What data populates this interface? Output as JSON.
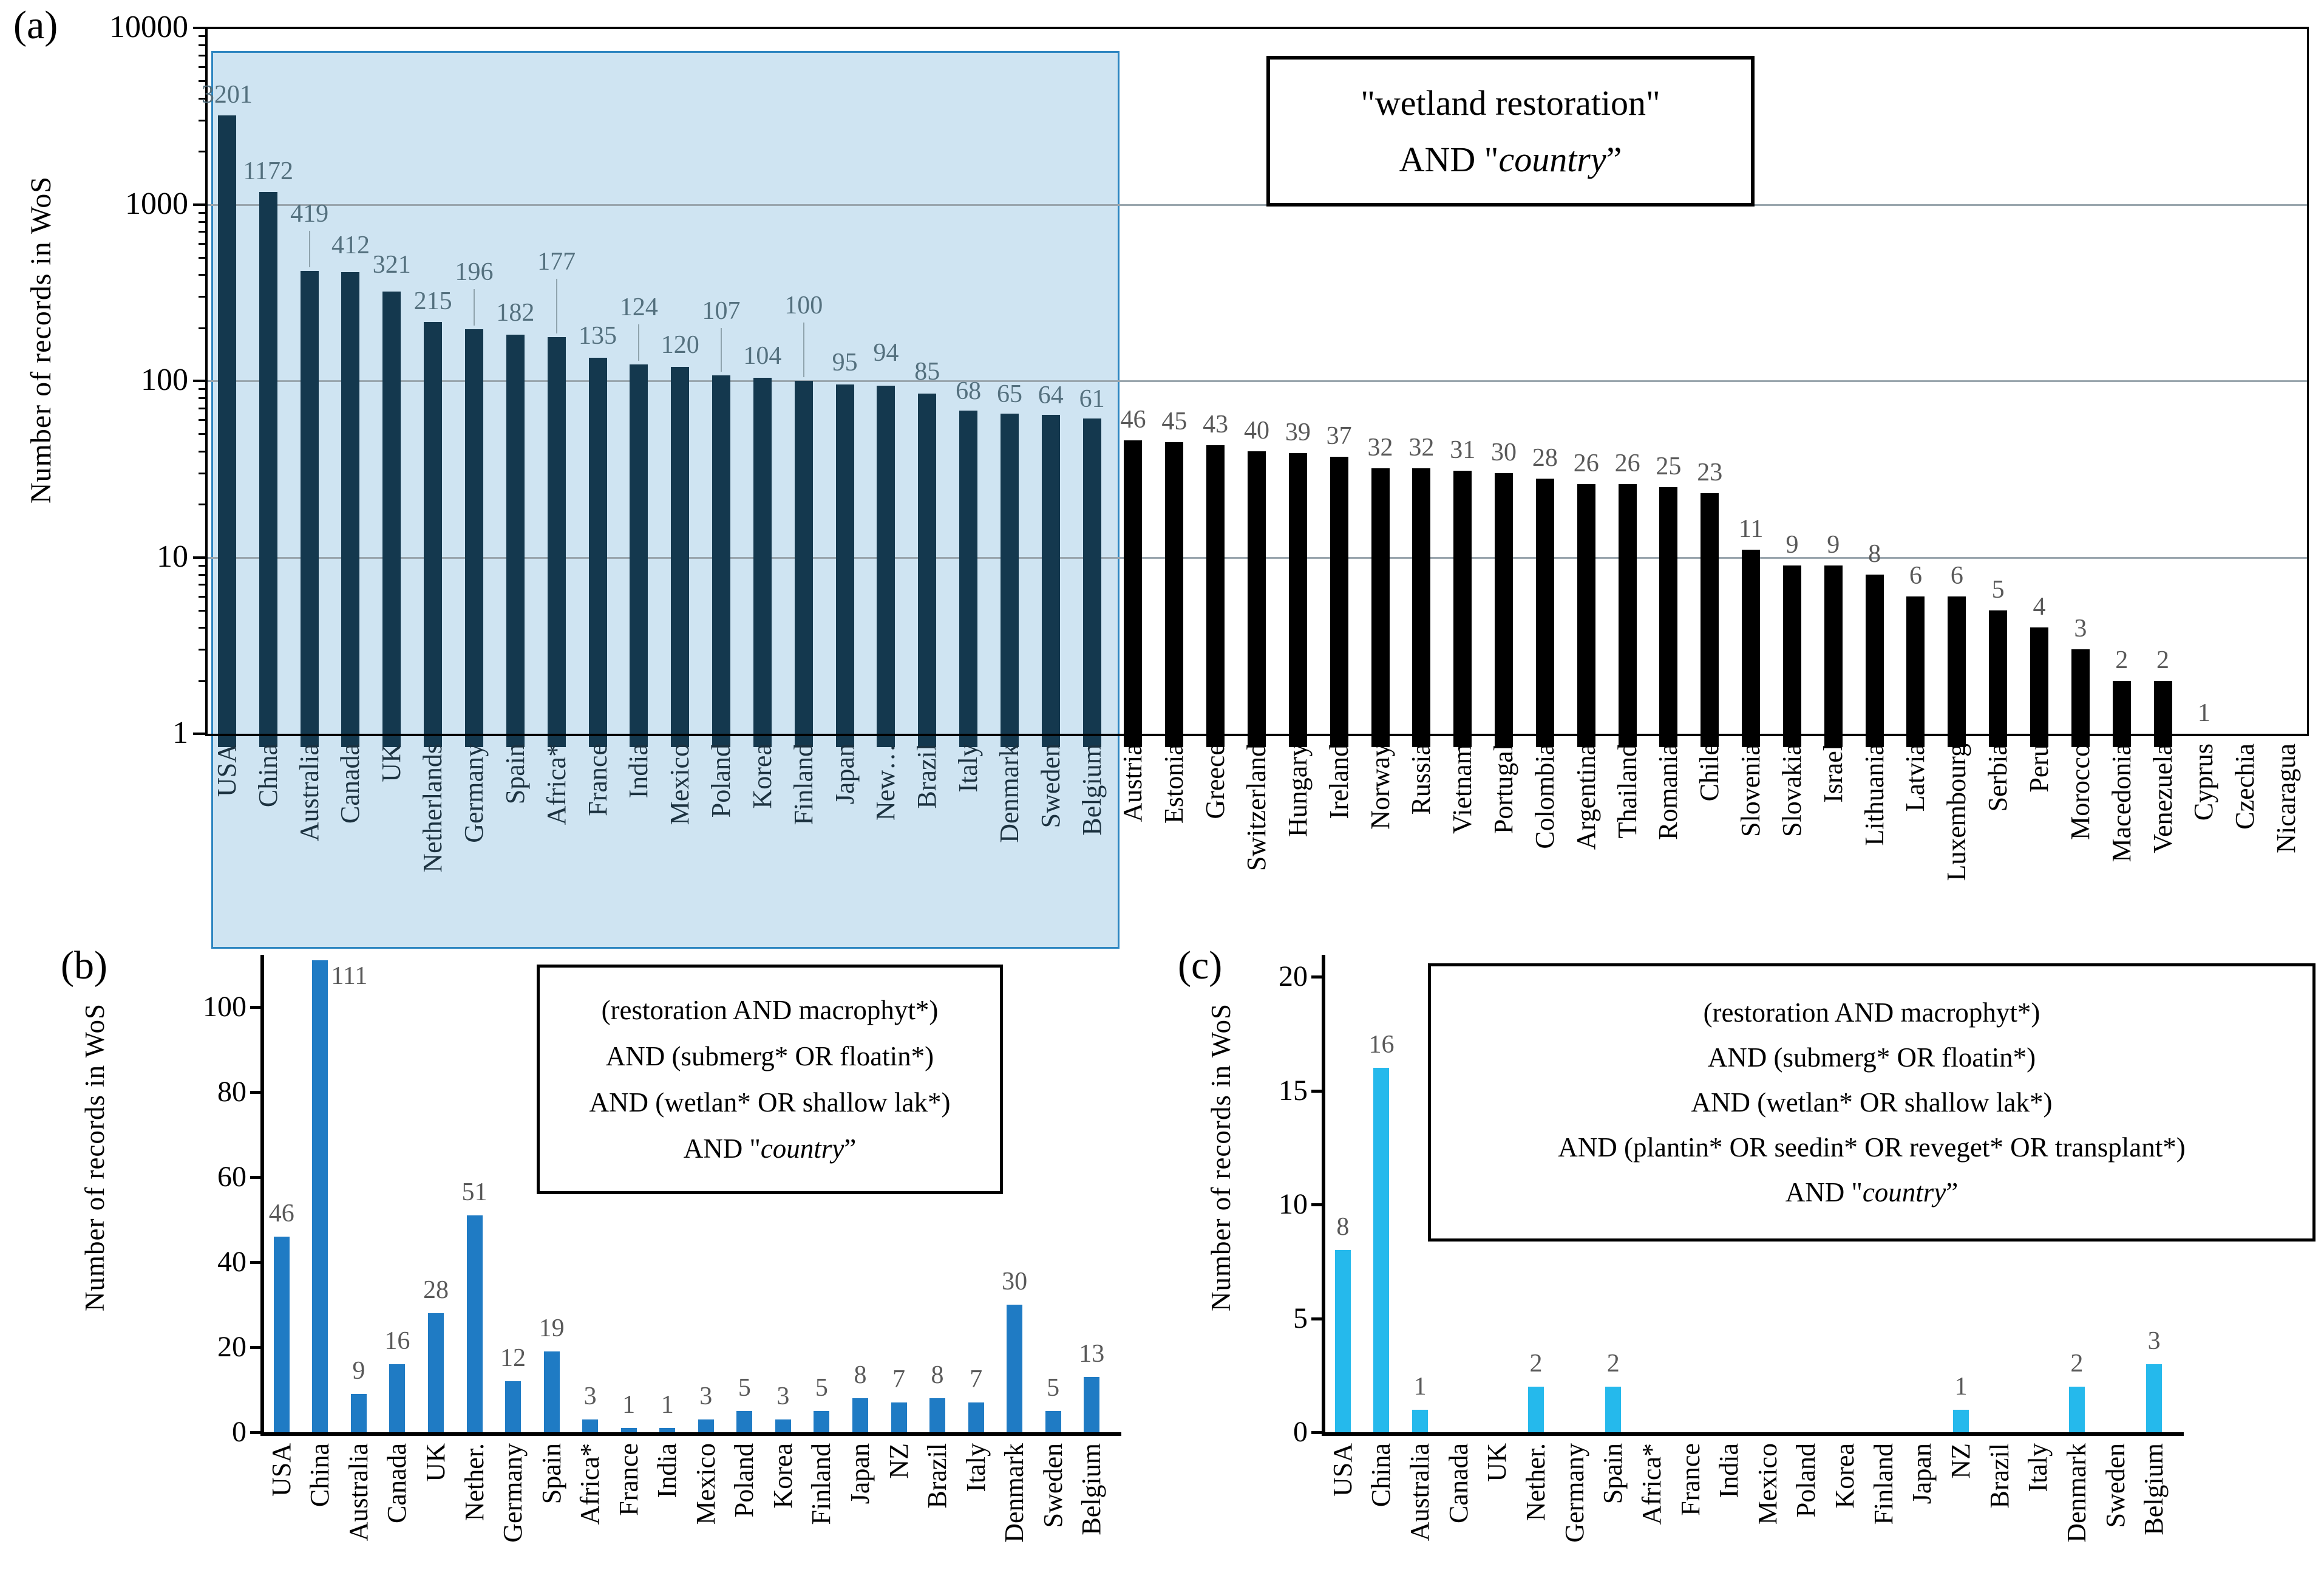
{
  "figure": {
    "panel_a_label": "(a)",
    "panel_b_label": "(b)",
    "panel_c_label": "(c)"
  },
  "colors": {
    "bar_a_highlight": "#14384e",
    "bar_a": "#000000",
    "bar_b": "#1f7bc4",
    "bar_c": "#25b9ec",
    "highlight_fill": "#cfe4f2",
    "highlight_border": "#2e86c1",
    "value_label": "#595959",
    "value_label_highlight": "#54707e",
    "grid": "#9aa6ae"
  },
  "chart_data": [
    {
      "id": "a",
      "type": "bar",
      "yscale": "log",
      "ylabel": "Number of records in WoS",
      "ylim": [
        1,
        10000
      ],
      "y_ticks": [
        "1",
        "10",
        "100",
        "1000",
        "10000"
      ],
      "grid": "on",
      "query": "\"wetland restoration\" AND \"country\"",
      "legend_lines": [
        {
          "pre": "\"wetland restoration\"",
          "italic": "",
          "post": ""
        },
        {
          "pre": "AND \"",
          "italic": "country",
          "post": "”"
        }
      ],
      "highlight_range": [
        0,
        21
      ],
      "categories": [
        "USA",
        "China",
        "Australia",
        "Canada",
        "UK",
        "Netherlands",
        "Germany",
        "Spain",
        "Africa*",
        "France",
        "India",
        "Mexico",
        "Poland",
        "Korea",
        "Finland",
        "Japan",
        "New…",
        "Brazil",
        "Italy",
        "Denmark",
        "Sweden",
        "Belgium",
        "Austria",
        "Estonia",
        "Greece",
        "Switzerland",
        "Hungary",
        "Ireland",
        "Norway",
        "Russia",
        "Vietnam",
        "Portugal",
        "Colombia",
        "Argentina",
        "Thailand",
        "Romania",
        "Chile",
        "Slovenia",
        "Slovakia",
        "Israel",
        "Lithuania",
        "Latvia",
        "Luxembourg",
        "Serbia",
        "Peru",
        "Morocco",
        "Macedonia",
        "Venezuela",
        "Cyprus",
        "Czechia",
        "Nicaragua"
      ],
      "values": [
        3201,
        1172,
        419,
        412,
        321,
        215,
        196,
        182,
        177,
        135,
        124,
        120,
        107,
        104,
        100,
        95,
        94,
        85,
        68,
        65,
        64,
        61,
        46,
        45,
        43,
        40,
        39,
        37,
        32,
        32,
        31,
        30,
        28,
        26,
        26,
        25,
        23,
        11,
        9,
        9,
        8,
        6,
        6,
        5,
        4,
        3,
        2,
        2,
        1,
        null,
        null
      ]
    },
    {
      "id": "b",
      "type": "bar",
      "yscale": "linear",
      "ylabel": "Number of records in WoS",
      "ylim": [
        0,
        100
      ],
      "y_ticks": [
        "0",
        "20",
        "40",
        "60",
        "80",
        "100"
      ],
      "grid": "off",
      "bar_color": "#1f7bc4",
      "query": "(restoration AND macrophyt*) AND (submerg* OR floatin*) AND (wetlan* OR shallow lak*) AND \"country\"",
      "legend_lines": [
        {
          "pre": "(restoration AND macrophyt*)",
          "italic": "",
          "post": ""
        },
        {
          "pre": "AND (submerg* OR floatin*)",
          "italic": "",
          "post": ""
        },
        {
          "pre": "AND (wetlan* OR shallow lak*)",
          "italic": "",
          "post": ""
        },
        {
          "pre": "AND \"",
          "italic": "country",
          "post": "”"
        }
      ],
      "categories": [
        "USA",
        "China",
        "Australia",
        "Canada",
        "UK",
        "Nether.",
        "Germany",
        "Spain",
        "Africa*",
        "France",
        "India",
        "Mexico",
        "Poland",
        "Korea",
        "Finland",
        "Japan",
        "NZ",
        "Brazil",
        "Italy",
        "Denmark",
        "Sweden",
        "Belgium"
      ],
      "values": [
        46,
        111,
        9,
        16,
        28,
        51,
        12,
        19,
        3,
        1,
        1,
        3,
        5,
        3,
        5,
        8,
        7,
        8,
        7,
        30,
        5,
        13
      ]
    },
    {
      "id": "c",
      "type": "bar",
      "yscale": "linear",
      "ylabel": "Number of records in WoS",
      "ylim": [
        0,
        20
      ],
      "y_ticks": [
        "0",
        "5",
        "10",
        "15",
        "20"
      ],
      "grid": "off",
      "bar_color": "#25b9ec",
      "query": "(restoration AND macrophyt*) AND (submerg* OR floatin*) AND (wetlan* OR shallow lak*) AND (plantin* OR seedin* OR reveget* OR transplant*) AND \"country\"",
      "legend_lines": [
        {
          "pre": "(restoration AND macrophyt*)",
          "italic": "",
          "post": ""
        },
        {
          "pre": "AND (submerg* OR floatin*)",
          "italic": "",
          "post": ""
        },
        {
          "pre": "AND (wetlan* OR shallow lak*)",
          "italic": "",
          "post": ""
        },
        {
          "pre": "AND (plantin* OR seedin* OR reveget* OR transplant*)",
          "italic": "",
          "post": ""
        },
        {
          "pre": "AND \"",
          "italic": "country",
          "post": "”"
        }
      ],
      "categories": [
        "USA",
        "China",
        "Australia",
        "Canada",
        "UK",
        "Nether.",
        "Germany",
        "Spain",
        "Africa*",
        "France",
        "India",
        "Mexico",
        "Poland",
        "Korea",
        "Finland",
        "Japan",
        "NZ",
        "Brazil",
        "Italy",
        "Denmark",
        "Sweden",
        "Belgium"
      ],
      "values": [
        8,
        16,
        1,
        0,
        0,
        2,
        0,
        2,
        0,
        0,
        0,
        0,
        0,
        0,
        0,
        0,
        1,
        0,
        0,
        2,
        0,
        3
      ]
    }
  ]
}
